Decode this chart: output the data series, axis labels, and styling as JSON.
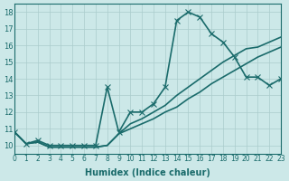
{
  "xlabel": "Humidex (Indice chaleur)",
  "ylabel": "",
  "xlim": [
    0,
    23
  ],
  "ylim": [
    9.5,
    18.5
  ],
  "yticks": [
    10,
    11,
    12,
    13,
    14,
    15,
    16,
    17,
    18
  ],
  "xticks": [
    0,
    1,
    2,
    3,
    4,
    5,
    6,
    7,
    8,
    9,
    10,
    11,
    12,
    13,
    14,
    15,
    16,
    17,
    18,
    19,
    20,
    21,
    22,
    23
  ],
  "bg_color": "#cce8e8",
  "line_color": "#1a6b6b",
  "grid_color": "#aacccc",
  "series": [
    {
      "x": [
        0,
        1,
        2,
        3,
        4,
        5,
        6,
        7,
        8,
        9,
        10,
        11,
        12,
        13,
        14,
        15,
        16,
        17,
        18,
        19,
        20,
        21,
        22,
        23
      ],
      "y": [
        10.8,
        10.1,
        10.3,
        10.0,
        10.0,
        10.0,
        10.0,
        10.0,
        13.5,
        10.8,
        12.0,
        12.0,
        12.5,
        13.5,
        17.5,
        18.0,
        17.7,
        16.7,
        16.2,
        15.3,
        14.1,
        14.1,
        13.6,
        14.0
      ],
      "marker": "x",
      "markersize": 4,
      "linewidth": 1.2
    },
    {
      "x": [
        0,
        1,
        2,
        3,
        4,
        5,
        6,
        7,
        8,
        9,
        10,
        11,
        12,
        13,
        14,
        15,
        16,
        17,
        18,
        19,
        20,
        21,
        22,
        23
      ],
      "y": [
        10.8,
        10.1,
        10.2,
        9.9,
        9.9,
        9.9,
        9.9,
        9.9,
        10.0,
        10.7,
        11.3,
        11.6,
        12.0,
        12.4,
        13.0,
        13.5,
        14.0,
        14.5,
        15.0,
        15.4,
        15.8,
        15.9,
        16.2,
        16.5
      ],
      "marker": null,
      "markersize": 0,
      "linewidth": 1.2
    },
    {
      "x": [
        0,
        1,
        2,
        3,
        4,
        5,
        6,
        7,
        8,
        9,
        10,
        11,
        12,
        13,
        14,
        15,
        16,
        17,
        18,
        19,
        20,
        21,
        22,
        23
      ],
      "y": [
        10.8,
        10.1,
        10.2,
        9.9,
        9.9,
        9.9,
        9.9,
        9.9,
        10.0,
        10.7,
        11.0,
        11.3,
        11.6,
        12.0,
        12.3,
        12.8,
        13.2,
        13.7,
        14.1,
        14.5,
        14.9,
        15.3,
        15.6,
        15.9
      ],
      "marker": null,
      "markersize": 0,
      "linewidth": 1.2
    }
  ]
}
